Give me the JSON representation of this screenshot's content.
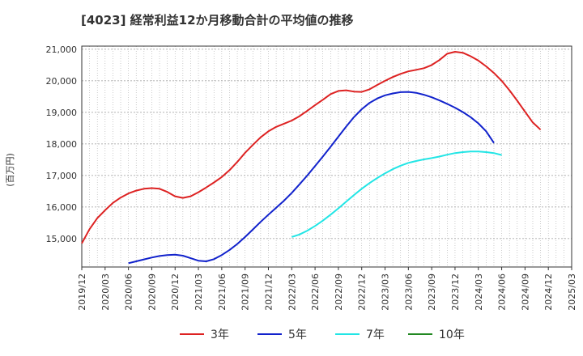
{
  "chart_data": {
    "type": "line",
    "title": "[4023]  経常利益12か月移動合計の平均値の推移",
    "ylabel": "(百万円)",
    "xlabel": "",
    "ylim": [
      14100,
      21100
    ],
    "yticks": [
      15000,
      16000,
      17000,
      18000,
      19000,
      20000,
      21000
    ],
    "ytick_labels": [
      "15,000",
      "16,000",
      "17,000",
      "18,000",
      "19,000",
      "20,000",
      "21,000"
    ],
    "xlim": [
      "2019-12",
      "2025-03"
    ],
    "xtick_labels": [
      "2019/12",
      "2020/03",
      "2020/06",
      "2020/09",
      "2020/12",
      "2021/03",
      "2021/06",
      "2021/09",
      "2021/12",
      "2022/03",
      "2022/06",
      "2022/09",
      "2022/12",
      "2023/03",
      "2023/06",
      "2023/09",
      "2023/12",
      "2024/03",
      "2024/06",
      "2024/09",
      "2024/12",
      "2025/03"
    ],
    "grid": true,
    "legend_position": "bottom",
    "series": [
      {
        "name": "3年",
        "color": "#dd2222",
        "x": [
          "2019-12",
          "2020-01",
          "2020-02",
          "2020-03",
          "2020-04",
          "2020-05",
          "2020-06",
          "2020-07",
          "2020-08",
          "2020-09",
          "2020-10",
          "2020-11",
          "2020-12",
          "2021-01",
          "2021-02",
          "2021-03",
          "2021-04",
          "2021-05",
          "2021-06",
          "2021-07",
          "2021-08",
          "2021-09",
          "2021-10",
          "2021-11",
          "2021-12",
          "2022-01",
          "2022-02",
          "2022-03",
          "2022-04",
          "2022-05",
          "2022-06",
          "2022-07",
          "2022-08",
          "2022-09",
          "2022-10",
          "2022-11",
          "2022-12",
          "2023-01",
          "2023-02",
          "2023-03",
          "2023-04",
          "2023-05",
          "2023-06",
          "2023-07",
          "2023-08",
          "2023-09",
          "2023-10",
          "2023-11",
          "2023-12",
          "2024-01",
          "2024-02",
          "2024-03",
          "2024-04",
          "2024-05",
          "2024-06",
          "2024-07",
          "2024-08",
          "2024-09",
          "2024-10",
          "2024-11",
          "2024-12"
        ],
        "values": [
          14850,
          15300,
          15650,
          15900,
          16130,
          16300,
          16430,
          16520,
          16580,
          16600,
          16580,
          16480,
          16340,
          16290,
          16340,
          16470,
          16620,
          16780,
          16950,
          17170,
          17430,
          17720,
          17970,
          18210,
          18400,
          18540,
          18640,
          18740,
          18880,
          19050,
          19230,
          19400,
          19580,
          19680,
          19700,
          19660,
          19650,
          19730,
          19870,
          20000,
          20120,
          20220,
          20300,
          20350,
          20400,
          20500,
          20660,
          20860,
          20920,
          20890,
          20780,
          20640,
          20460,
          20250,
          20000,
          19700,
          19370,
          19020,
          18680,
          18450,
          null
        ]
      },
      {
        "name": "5年",
        "color": "#1122cc",
        "x": [
          "2020-06",
          "2020-07",
          "2020-08",
          "2020-09",
          "2020-10",
          "2020-11",
          "2020-12",
          "2021-01",
          "2021-02",
          "2021-03",
          "2021-04",
          "2021-05",
          "2021-06",
          "2021-07",
          "2021-08",
          "2021-09",
          "2021-10",
          "2021-11",
          "2021-12",
          "2022-01",
          "2022-02",
          "2022-03",
          "2022-04",
          "2022-05",
          "2022-06",
          "2022-07",
          "2022-08",
          "2022-09",
          "2022-10",
          "2022-11",
          "2022-12",
          "2023-01",
          "2023-02",
          "2023-03",
          "2023-04",
          "2023-05",
          "2023-06",
          "2023-07",
          "2023-08",
          "2023-09",
          "2023-10",
          "2023-11",
          "2023-12",
          "2024-01",
          "2024-02",
          "2024-03",
          "2024-04",
          "2024-05",
          "2024-06",
          "2024-07",
          "2024-08",
          "2024-09",
          "2024-10",
          "2024-11",
          "2024-12"
        ],
        "values": [
          14220,
          14280,
          14340,
          14400,
          14450,
          14480,
          14490,
          14460,
          14380,
          14300,
          14280,
          14350,
          14480,
          14640,
          14830,
          15050,
          15290,
          15530,
          15760,
          15980,
          16200,
          16450,
          16720,
          17000,
          17300,
          17600,
          17910,
          18230,
          18550,
          18850,
          19100,
          19300,
          19440,
          19540,
          19600,
          19640,
          19650,
          19620,
          19560,
          19480,
          19380,
          19270,
          19150,
          19010,
          18850,
          18650,
          18400,
          18030,
          null,
          null,
          null,
          null,
          null,
          null,
          null
        ]
      },
      {
        "name": "7年",
        "color": "#22e5e5",
        "x": [
          "2022-03",
          "2022-04",
          "2022-05",
          "2022-06",
          "2022-07",
          "2022-08",
          "2022-09",
          "2022-10",
          "2022-11",
          "2022-12",
          "2023-01",
          "2023-02",
          "2023-03",
          "2023-04",
          "2023-05",
          "2023-06",
          "2023-07",
          "2023-08",
          "2023-09",
          "2023-10",
          "2023-11",
          "2023-12",
          "2024-01",
          "2024-02",
          "2024-03",
          "2024-04",
          "2024-05",
          "2024-06",
          "2024-07",
          "2024-08",
          "2024-09",
          "2024-10",
          "2024-11",
          "2024-12"
        ],
        "values": [
          15050,
          15130,
          15250,
          15400,
          15570,
          15760,
          15960,
          16170,
          16380,
          16580,
          16760,
          16920,
          17070,
          17200,
          17310,
          17400,
          17460,
          17510,
          17550,
          17600,
          17660,
          17710,
          17740,
          17760,
          17760,
          17740,
          17710,
          17650,
          null,
          null,
          null,
          null,
          null,
          null
        ]
      },
      {
        "name": "10年",
        "color": "#228822",
        "x": [],
        "values": []
      }
    ]
  }
}
